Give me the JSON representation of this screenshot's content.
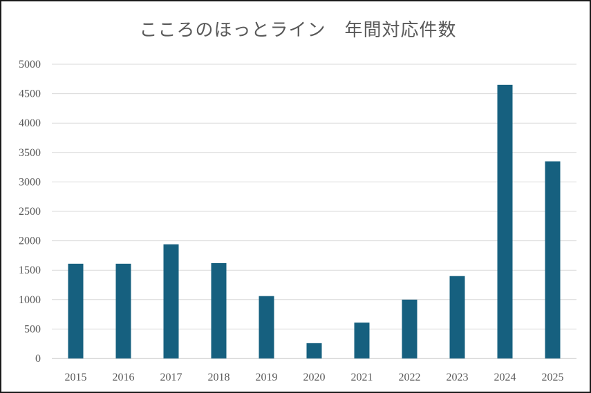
{
  "colors": {
    "bar": "#16607f",
    "text": "#595959",
    "grid": "#d9d9d9",
    "axis": "#bfbfbf",
    "border": "#1a1a1a"
  },
  "chart_data": {
    "type": "bar",
    "title": "こころのほっとライン　年間対応件数",
    "xlabel": "",
    "ylabel": "",
    "categories": [
      "2015",
      "2016",
      "2017",
      "2018",
      "2019",
      "2020",
      "2021",
      "2022",
      "2023",
      "2024",
      "2025"
    ],
    "values": [
      1610,
      1610,
      1940,
      1620,
      1060,
      260,
      610,
      1000,
      1400,
      4650,
      3350
    ],
    "ylim": [
      0,
      5000
    ],
    "yticks": [
      0,
      500,
      1000,
      1500,
      2000,
      2500,
      3000,
      3500,
      4000,
      4500,
      5000
    ],
    "grid": true,
    "legend": "none"
  }
}
